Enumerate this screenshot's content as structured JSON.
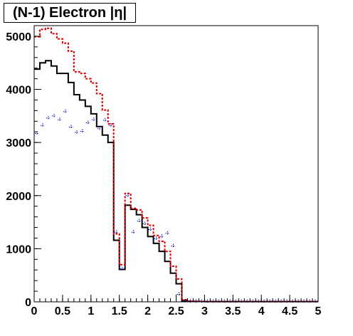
{
  "chart_data": {
    "type": "histogram",
    "title": "(N-1) Electron |η|",
    "xlabel": "",
    "ylabel": "",
    "xlim": [
      0,
      5
    ],
    "ylim": [
      0,
      5200
    ],
    "x_ticks": [
      "0",
      "0.5",
      "1",
      "1.5",
      "2",
      "2.5",
      "3",
      "3.5",
      "4",
      "4.5",
      "5"
    ],
    "y_ticks": [
      "0",
      "1000",
      "2000",
      "3000",
      "4000",
      "5000"
    ],
    "bin_width": 0.1,
    "grid": false,
    "legend": "none",
    "series": [
      {
        "style": "solid-step",
        "color": "#000000",
        "values": [
          4380,
          4500,
          4540,
          4440,
          4300,
          4300,
          4130,
          3900,
          3800,
          3680,
          3540,
          3300,
          3140,
          3000,
          1160,
          610,
          1820,
          1740,
          1640,
          1400,
          1230,
          1100,
          950,
          760,
          540,
          340,
          20,
          10,
          8,
          6,
          5,
          5,
          5,
          5,
          5,
          5,
          5,
          5,
          5,
          5,
          5,
          5,
          5,
          5,
          5,
          5,
          5,
          5,
          5,
          5
        ]
      },
      {
        "style": "dashed-step",
        "color": "#e00000",
        "values": [
          4990,
          5130,
          5150,
          5050,
          4950,
          4870,
          4720,
          4330,
          4300,
          4200,
          4120,
          3920,
          3610,
          3350,
          1280,
          700,
          2040,
          1760,
          1730,
          1580,
          1440,
          1250,
          1140,
          950,
          670,
          430,
          40,
          10,
          8,
          6,
          5,
          5,
          5,
          5,
          5,
          5,
          5,
          5,
          5,
          5,
          5,
          5,
          5,
          5,
          5,
          5,
          5,
          5,
          5,
          5
        ]
      },
      {
        "style": "points",
        "color": "#0000cc",
        "values": [
          3170,
          3320,
          3460,
          3500,
          3430,
          3580,
          3290,
          3190,
          3210,
          3370,
          3430,
          3260,
          3420,
          3320,
          1310,
          620,
          2000,
          1310,
          1520,
          1470,
          1360,
          1190,
          1230,
          1290,
          1050,
          140,
          10,
          5,
          5,
          5,
          5,
          5,
          5,
          5,
          5,
          5,
          5,
          5,
          5,
          5,
          5,
          5,
          5,
          5,
          5,
          5,
          5,
          5,
          5,
          5
        ]
      }
    ]
  }
}
